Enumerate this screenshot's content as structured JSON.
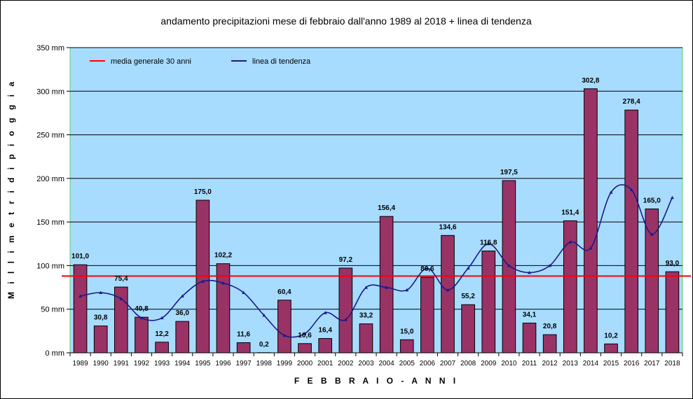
{
  "chart_data": {
    "type": "bar",
    "title": "andamento precipitazioni mese di febbraio dall'anno 1989 al 2018 + linea di tendenza",
    "xlabel": "F E B B R A I O  -  A N N I",
    "ylabel": "M i l l i m e t r i   d i   p i o g g i a",
    "ylim": [
      0,
      350
    ],
    "yticks": [
      0,
      50,
      100,
      150,
      200,
      250,
      300,
      350
    ],
    "ytick_labels": [
      "0 mm",
      "50 mm",
      "100 mm",
      "150 mm",
      "200 mm",
      "250 mm",
      "300 mm",
      "350 mm"
    ],
    "categories": [
      "1989",
      "1990",
      "1991",
      "1992",
      "1993",
      "1994",
      "1995",
      "1996",
      "1997",
      "1998",
      "1999",
      "2000",
      "2001",
      "2002",
      "2003",
      "2004",
      "2005",
      "2006",
      "2007",
      "2008",
      "2009",
      "2010",
      "2011",
      "2012",
      "2013",
      "2014",
      "2015",
      "2016",
      "2017",
      "2018"
    ],
    "values": [
      101.0,
      30.8,
      75.4,
      40.8,
      12.2,
      36.0,
      175.0,
      102.2,
      11.6,
      0.2,
      60.4,
      10.6,
      16.4,
      97.2,
      33.2,
      156.4,
      15.0,
      86.6,
      134.6,
      55.2,
      116.8,
      197.5,
      34.1,
      20.8,
      151.4,
      302.8,
      10.2,
      278.4,
      165.0,
      93.0
    ],
    "value_labels": [
      "101,0",
      "30,8",
      "75,4",
      "40,8",
      "12,2",
      "36,0",
      "175,0",
      "102,2",
      "11,6",
      "0,2",
      "60,4",
      "10,6",
      "16,4",
      "97,2",
      "33,2",
      "156,4",
      "15,0",
      "86,6",
      "134,6",
      "55,2",
      "116,8",
      "197,5",
      "34,1",
      "20,8",
      "151,4",
      "302,8",
      "10,2",
      "278,4",
      "165,0",
      "93,0"
    ],
    "trend": {
      "name": "linea di tendenza",
      "values": [
        65,
        69,
        62,
        40,
        40,
        65,
        82,
        80,
        69,
        43,
        20,
        22,
        46,
        38,
        75,
        75,
        72,
        97,
        72,
        97,
        125,
        100,
        92,
        100,
        127,
        120,
        184,
        187,
        136,
        178
      ]
    },
    "mean": {
      "name": "media generale 30 anni",
      "value": 88
    },
    "legend": [
      "media generale 30 anni",
      "linea di tendenza"
    ],
    "grid": true
  },
  "colors": {
    "plot_bg": "#a8dcff",
    "bar_fill": "#993366",
    "mean_line": "#ff0000",
    "trend_line": "#1a1a8c",
    "plot_border": "#66cc66",
    "grid": "#000000"
  }
}
